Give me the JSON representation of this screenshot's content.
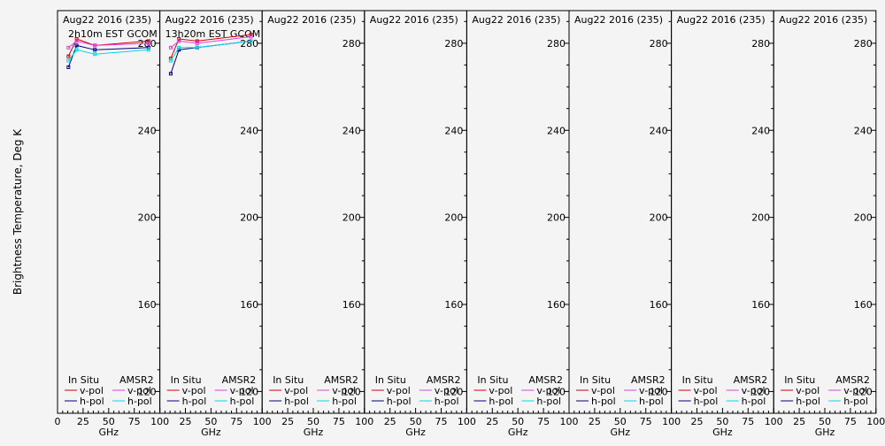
{
  "y_axis_label": "Brightness Temperature, Deg K",
  "x_axis_label": "GHz",
  "legend": {
    "in_situ_title": "In Situ",
    "amsr2_title": "AMSR2",
    "vpol": "v-pol",
    "hpol": "h-pol"
  },
  "colors": {
    "insitu_v": "#d40000",
    "insitu_h": "#000080",
    "amsr2_v": "#e040e0",
    "amsr2_h": "#00d8e8",
    "axis": "#000000",
    "background": "#f4f4f4"
  },
  "chart_data": {
    "type": "line",
    "ylabel": "Brightness Temperature, Deg K",
    "xlabel": "GHz",
    "xlim": [
      0,
      100
    ],
    "ylim": [
      110,
      295
    ],
    "x_ticks": [
      0,
      25,
      50,
      75,
      100
    ],
    "y_ticks": [
      120,
      160,
      200,
      240,
      280
    ],
    "grid": false,
    "legend_position": "bottom",
    "panels": [
      {
        "title": "Aug22 2016 (235)",
        "subtitle": "2h10m EST GCOM",
        "series": [
          {
            "name": "In Situ v-pol",
            "x": [
              10.65,
              18.7,
              36.5,
              89.0
            ],
            "y": [
              274,
              282,
              279,
              281
            ]
          },
          {
            "name": "In Situ h-pol",
            "x": [
              10.65,
              18.7,
              36.5,
              89.0
            ],
            "y": [
              269,
              279,
              277,
              278
            ]
          },
          {
            "name": "AMSR2 v-pol",
            "x": [
              10.65,
              18.7,
              36.5,
              89.0
            ],
            "y": [
              278,
              281,
              279,
              280
            ]
          },
          {
            "name": "AMSR2 h-pol",
            "x": [
              10.65,
              18.7,
              36.5,
              89.0
            ],
            "y": [
              272,
              277,
              275,
              277
            ]
          }
        ]
      },
      {
        "title": "Aug22 2016 (235)",
        "subtitle": "13h20m EST GCOM",
        "series": [
          {
            "name": "In Situ v-pol",
            "x": [
              10.65,
              18.7,
              36.5,
              89.0
            ],
            "y": [
              273,
              282,
              281,
              284
            ]
          },
          {
            "name": "In Situ h-pol",
            "x": [
              10.65,
              18.7,
              36.5,
              89.0
            ],
            "y": [
              266,
              277,
              278,
              281
            ]
          },
          {
            "name": "AMSR2 v-pol",
            "x": [
              10.65,
              18.7,
              36.5,
              89.0
            ],
            "y": [
              278,
              281,
              280,
              283
            ]
          },
          {
            "name": "AMSR2 h-pol",
            "x": [
              10.65,
              18.7,
              36.5,
              89.0
            ],
            "y": [
              272,
              278,
              278,
              281
            ]
          }
        ]
      },
      {
        "title": "Aug22 2016 (235)",
        "subtitle": "",
        "series": []
      },
      {
        "title": "Aug22 2016 (235)",
        "subtitle": "",
        "series": []
      },
      {
        "title": "Aug22 2016 (235)",
        "subtitle": "",
        "series": []
      },
      {
        "title": "Aug22 2016 (235)",
        "subtitle": "",
        "series": []
      },
      {
        "title": "Aug22 2016 (235)",
        "subtitle": "",
        "series": []
      },
      {
        "title": "Aug22 2016 (235)",
        "subtitle": "",
        "series": []
      }
    ]
  }
}
